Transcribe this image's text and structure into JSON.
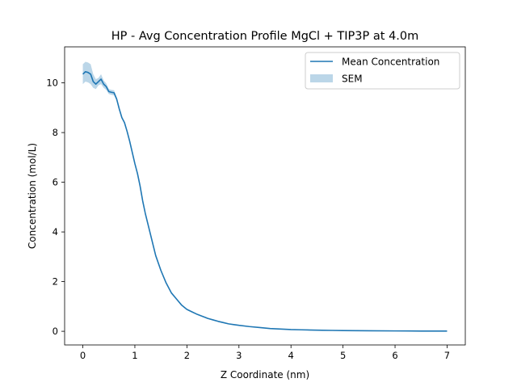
{
  "chart_data": {
    "type": "line",
    "title": "HP - Avg Concentration Profile MgCl + TIP3P at 4.0m",
    "xlabel": "Z Coordinate (nm)",
    "ylabel": "Concentration (mol/L)",
    "xlim": [
      -0.35,
      7.35
    ],
    "ylim": [
      -0.55,
      11.45
    ],
    "xticks": [
      0,
      1,
      2,
      3,
      4,
      5,
      6,
      7
    ],
    "yticks": [
      0,
      2,
      4,
      6,
      8,
      10
    ],
    "grid": false,
    "legend_position": "top-right",
    "colors": {
      "line": "#1f77b4",
      "band": "#1f77b4",
      "band_opacity": 0.3
    },
    "series": [
      {
        "name": "Mean Concentration",
        "kind": "line",
        "x": [
          0.0,
          0.05,
          0.1,
          0.15,
          0.2,
          0.25,
          0.3,
          0.35,
          0.4,
          0.45,
          0.5,
          0.55,
          0.6,
          0.65,
          0.7,
          0.75,
          0.8,
          0.85,
          0.9,
          0.95,
          1.0,
          1.05,
          1.1,
          1.15,
          1.2,
          1.3,
          1.4,
          1.5,
          1.6,
          1.7,
          1.8,
          1.9,
          2.0,
          2.1,
          2.2,
          2.3,
          2.4,
          2.5,
          2.6,
          2.7,
          2.8,
          2.9,
          3.0,
          3.2,
          3.4,
          3.6,
          3.8,
          4.0,
          4.2,
          4.4,
          4.6,
          4.8,
          5.0,
          5.5,
          6.0,
          6.5,
          7.0
        ],
        "y": [
          10.35,
          10.45,
          10.42,
          10.35,
          10.05,
          9.95,
          10.05,
          10.15,
          9.95,
          9.85,
          9.65,
          9.62,
          9.6,
          9.35,
          8.95,
          8.6,
          8.4,
          8.05,
          7.65,
          7.2,
          6.75,
          6.35,
          5.85,
          5.25,
          4.75,
          3.9,
          3.05,
          2.45,
          1.95,
          1.55,
          1.3,
          1.05,
          0.88,
          0.78,
          0.68,
          0.6,
          0.52,
          0.46,
          0.4,
          0.35,
          0.3,
          0.27,
          0.24,
          0.19,
          0.15,
          0.11,
          0.09,
          0.07,
          0.06,
          0.05,
          0.04,
          0.035,
          0.03,
          0.02,
          0.015,
          0.01,
          0.01
        ]
      },
      {
        "name": "SEM",
        "kind": "band",
        "x": [
          0.0,
          0.05,
          0.1,
          0.15,
          0.2,
          0.25,
          0.3,
          0.35,
          0.4,
          0.45,
          0.5,
          0.55,
          0.6,
          0.65,
          0.7
        ],
        "lower": [
          9.95,
          10.05,
          10.02,
          9.95,
          9.8,
          9.75,
          9.9,
          9.95,
          9.8,
          9.72,
          9.55,
          9.52,
          9.5,
          9.28,
          8.88
        ],
        "upper": [
          10.75,
          10.85,
          10.82,
          10.75,
          10.35,
          10.15,
          10.2,
          10.35,
          10.1,
          9.98,
          9.75,
          9.72,
          9.7,
          9.42,
          9.02
        ]
      }
    ]
  }
}
